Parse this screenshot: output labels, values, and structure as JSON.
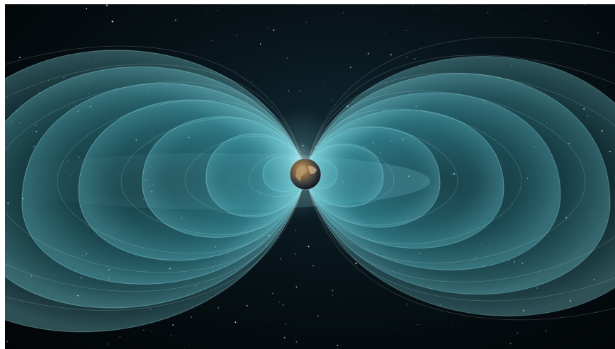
{
  "image": {
    "subject": "earth-magnetosphere-illustration",
    "colors": {
      "space": "#040a0d",
      "field_fill": "#3fa6b4",
      "field_line": "#a9eef5",
      "earth_land": "#8a6a45",
      "earth_ocean": "#2b3b4a",
      "glow": "#d9fbff"
    }
  }
}
